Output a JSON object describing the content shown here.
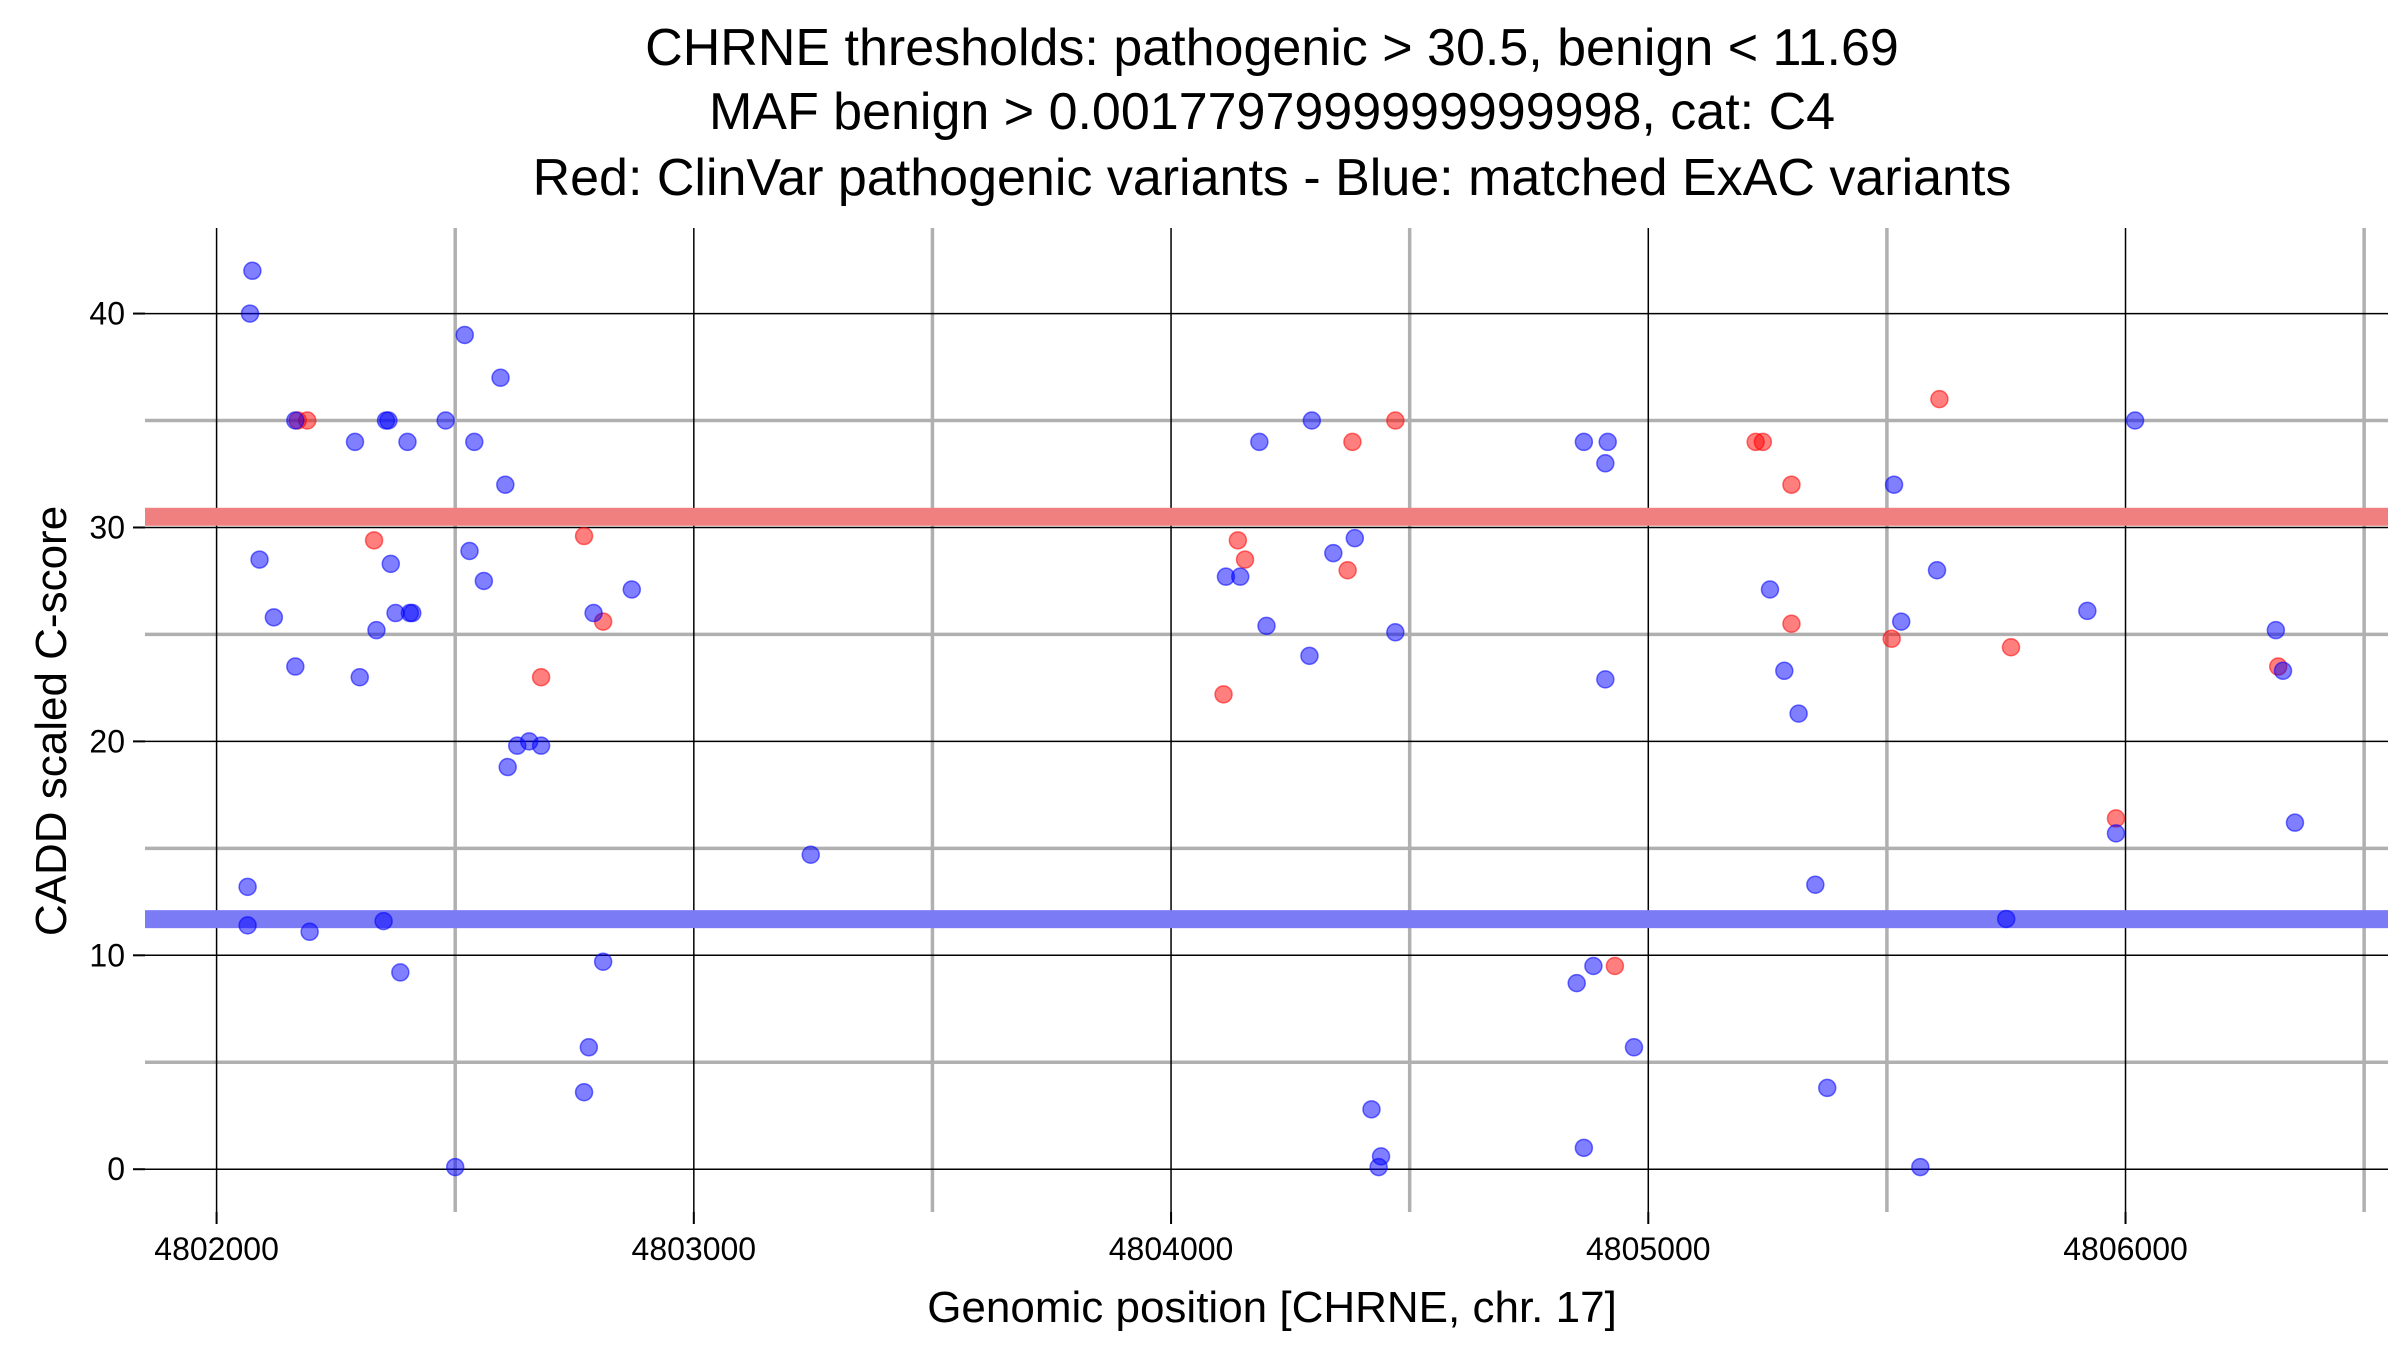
{
  "chart_data": {
    "type": "scatter",
    "title_lines": [
      "CHRNE thresholds: pathogenic > 30.5, benign < 11.69",
      "MAF benign > 0.0017797999999999998, cat: C4",
      "Red: ClinVar pathogenic variants - Blue: matched ExAC variants"
    ],
    "xlabel": "Genomic position [CHRNE, chr. 17]",
    "ylabel": "CADD scaled C-score",
    "xlim": [
      4801850,
      4806550
    ],
    "ylim": [
      -2,
      44
    ],
    "x_ticks": [
      4802000,
      4803000,
      4804000,
      4805000,
      4806000
    ],
    "x_tick_labels": [
      "4802000",
      "4803000",
      "4804000",
      "4805000",
      "4806000"
    ],
    "y_ticks": [
      0,
      10,
      20,
      30,
      40
    ],
    "y_tick_labels": [
      "0",
      "10",
      "20",
      "30",
      "40"
    ],
    "x_minor_ticks": [
      4802500,
      4803500,
      4804500,
      4805500,
      4806500
    ],
    "y_minor_ticks": [
      5,
      15,
      25,
      35
    ],
    "grid": true,
    "thresholds": [
      {
        "name": "pathogenic",
        "value": 30.5,
        "color": "#f08080"
      },
      {
        "name": "benign",
        "value": 11.69,
        "color": "#7b7bf5"
      }
    ],
    "series": [
      {
        "color": "#ff0000",
        "points": [
          [
            4802170,
            35
          ],
          [
            4802190,
            35
          ],
          [
            4802330,
            29.4
          ],
          [
            4802770,
            29.6
          ],
          [
            4802810,
            25.6
          ],
          [
            4802680,
            23
          ],
          [
            4804110,
            22.2
          ],
          [
            4804140,
            29.4
          ],
          [
            4804155,
            28.5
          ],
          [
            4804370,
            28
          ],
          [
            4804380,
            34
          ],
          [
            4804470,
            35
          ],
          [
            4804930,
            9.5
          ],
          [
            4805225,
            34
          ],
          [
            4805240,
            34
          ],
          [
            4805300,
            32
          ],
          [
            4805300,
            25.5
          ],
          [
            4805510,
            24.8
          ],
          [
            4805610,
            36
          ],
          [
            4805760,
            24.4
          ],
          [
            4805980,
            16.4
          ],
          [
            4806320,
            23.5
          ]
        ]
      },
      {
        "color": "#0000ff",
        "points": [
          [
            4802075,
            42
          ],
          [
            4802070,
            40
          ],
          [
            4802165,
            35
          ],
          [
            4802290,
            34
          ],
          [
            4802355,
            35
          ],
          [
            4802360,
            35
          ],
          [
            4802400,
            34
          ],
          [
            4802480,
            35
          ],
          [
            4802090,
            28.5
          ],
          [
            4802120,
            25.8
          ],
          [
            4802165,
            23.5
          ],
          [
            4802300,
            23
          ],
          [
            4802335,
            25.2
          ],
          [
            4802365,
            28.3
          ],
          [
            4802375,
            26
          ],
          [
            4802405,
            26
          ],
          [
            4802410,
            26
          ],
          [
            4802520,
            39
          ],
          [
            4802540,
            34
          ],
          [
            4802530,
            28.9
          ],
          [
            4802560,
            27.5
          ],
          [
            4802595,
            37
          ],
          [
            4802605,
            32
          ],
          [
            4802610,
            18.8
          ],
          [
            4802630,
            19.8
          ],
          [
            4802655,
            20
          ],
          [
            4802680,
            19.8
          ],
          [
            4802790,
            26
          ],
          [
            4802870,
            27.1
          ],
          [
            4802065,
            13.2
          ],
          [
            4802065,
            11.4
          ],
          [
            4802195,
            11.1
          ],
          [
            4802350,
            11.6
          ],
          [
            4802385,
            9.2
          ],
          [
            4802810,
            9.7
          ],
          [
            4802780,
            5.7
          ],
          [
            4802770,
            3.6
          ],
          [
            4802500,
            0.1
          ],
          [
            4803245,
            14.7
          ],
          [
            4804115,
            27.7
          ],
          [
            4804145,
            27.7
          ],
          [
            4804185,
            34
          ],
          [
            4804200,
            25.4
          ],
          [
            4804295,
            35
          ],
          [
            4804290,
            24
          ],
          [
            4804340,
            28.8
          ],
          [
            4804385,
            29.5
          ],
          [
            4804470,
            25.1
          ],
          [
            4804420,
            2.8
          ],
          [
            4804440,
            0.6
          ],
          [
            4804435,
            0.1
          ],
          [
            4804865,
            34
          ],
          [
            4804915,
            34
          ],
          [
            4804910,
            33
          ],
          [
            4804910,
            22.9
          ],
          [
            4804850,
            8.7
          ],
          [
            4804885,
            9.5
          ],
          [
            4804970,
            5.7
          ],
          [
            4804865,
            1
          ],
          [
            4805255,
            27.1
          ],
          [
            4805285,
            23.3
          ],
          [
            4805315,
            21.3
          ],
          [
            4805350,
            13.3
          ],
          [
            4805375,
            3.8
          ],
          [
            4805515,
            32
          ],
          [
            4805530,
            25.6
          ],
          [
            4805605,
            28
          ],
          [
            4805570,
            0.1
          ],
          [
            4805750,
            11.7
          ],
          [
            4805920,
            26.1
          ],
          [
            4805980,
            15.7
          ],
          [
            4806020,
            35
          ],
          [
            4806315,
            25.2
          ],
          [
            4806330,
            23.3
          ],
          [
            4806355,
            16.2
          ]
        ]
      }
    ]
  }
}
